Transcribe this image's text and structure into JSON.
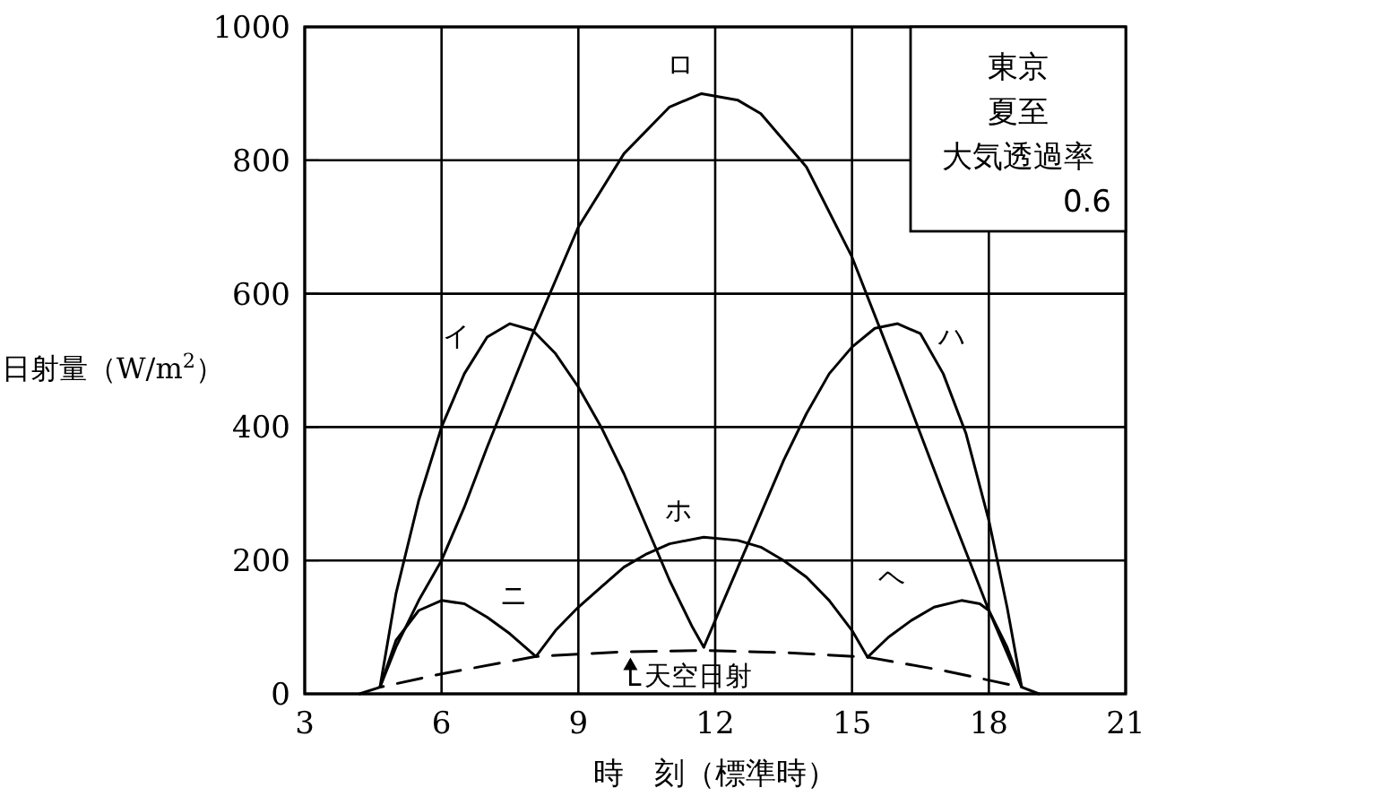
{
  "chart_data": {
    "type": "line",
    "xlabel": "時　刻（標準時）",
    "ylabel": "日射量（W/m$^{2}$）",
    "xlim": [
      3,
      21
    ],
    "ylim": [
      0,
      1000
    ],
    "xticks": [
      3,
      6,
      9,
      12,
      15,
      18,
      21
    ],
    "yticks": [
      0,
      200,
      400,
      600,
      800,
      1000
    ],
    "grid": true,
    "marker": "none",
    "annotations": [
      "東京",
      "夏至",
      "大気透過率",
      "0.6"
    ],
    "series": [
      {
        "name": "イ",
        "color": "#000000",
        "line_style": "solid",
        "x": [
          4.65,
          5,
          5.5,
          6,
          6.5,
          7,
          7.5,
          8,
          8.5,
          9,
          9.5,
          10,
          10.5,
          11,
          11.5,
          11.75
        ],
        "values": [
          10,
          150,
          290,
          400,
          480,
          535,
          555,
          545,
          510,
          460,
          400,
          330,
          250,
          170,
          100,
          70
        ]
      },
      {
        "name": "ロ",
        "color": "#000000",
        "line_style": "solid",
        "x": [
          4.65,
          5,
          5.5,
          6,
          6.5,
          7,
          8,
          9,
          10,
          11,
          11.7,
          12.5,
          13,
          14,
          15,
          16,
          17,
          18,
          18.72
        ],
        "values": [
          10,
          70,
          140,
          200,
          280,
          370,
          540,
          700,
          810,
          880,
          900,
          890,
          870,
          790,
          655,
          480,
          300,
          125,
          10
        ]
      },
      {
        "name": "ハ",
        "color": "#000000",
        "line_style": "solid",
        "x": [
          11.75,
          12,
          12.5,
          13,
          13.5,
          14,
          14.5,
          15,
          15.5,
          16,
          16.5,
          17,
          17.5,
          18,
          18.4,
          18.72
        ],
        "values": [
          70,
          110,
          190,
          270,
          350,
          420,
          480,
          520,
          548,
          555,
          540,
          480,
          390,
          260,
          130,
          10
        ]
      },
      {
        "name": "ニ",
        "color": "#000000",
        "line_style": "solid",
        "x": [
          4.65,
          5,
          5.5,
          6,
          6.5,
          7,
          7.5,
          8.07
        ],
        "values": [
          10,
          80,
          125,
          140,
          135,
          115,
          90,
          56
        ]
      },
      {
        "name": "ホ",
        "color": "#000000",
        "line_style": "solid",
        "x": [
          8.07,
          8.5,
          9,
          9.5,
          10,
          10.5,
          11,
          11.75,
          12.5,
          13,
          13.5,
          14,
          14.5,
          15,
          15.34
        ],
        "values": [
          56,
          95,
          130,
          160,
          190,
          210,
          225,
          235,
          230,
          220,
          200,
          175,
          140,
          95,
          55
        ]
      },
      {
        "name": "ヘ",
        "color": "#000000",
        "line_style": "solid",
        "x": [
          15.34,
          15.8,
          16.3,
          16.8,
          17.4,
          17.8,
          18,
          18.4,
          18.72
        ],
        "values": [
          55,
          85,
          110,
          130,
          140,
          135,
          125,
          70,
          10
        ]
      },
      {
        "name": "天空日射",
        "color": "#000000",
        "line_style": "dashed",
        "x": [
          4.2,
          4.65,
          6,
          8.07,
          10,
          11.75,
          13.5,
          15.34,
          17,
          18.72,
          19.1
        ],
        "values": [
          0,
          10,
          30,
          56,
          63,
          65,
          62,
          55,
          35,
          10,
          0
        ]
      }
    ]
  }
}
